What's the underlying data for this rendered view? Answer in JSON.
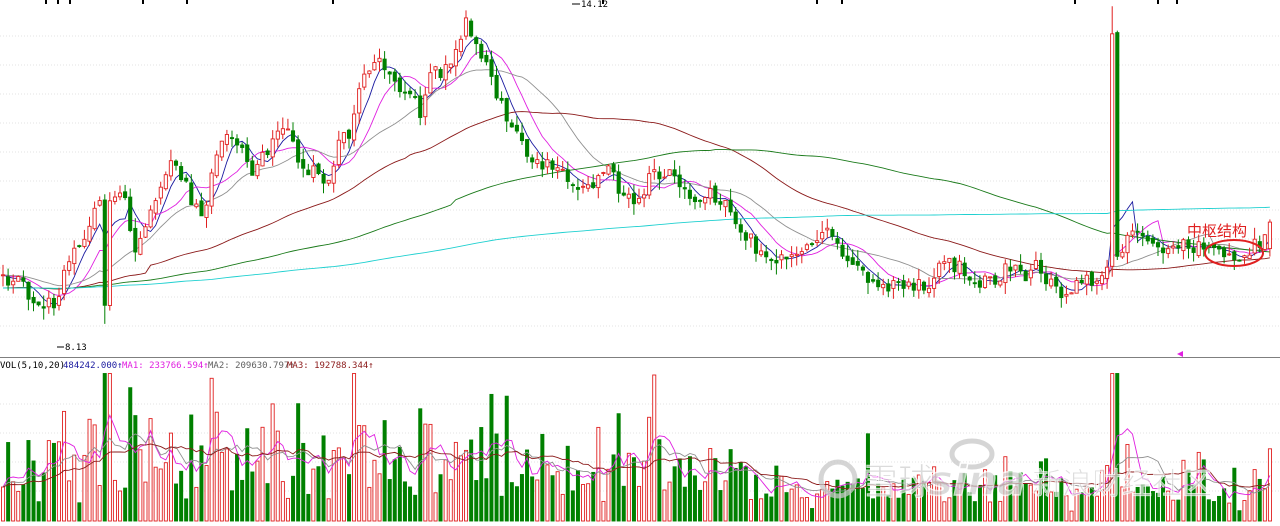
{
  "chart_data": [
    {
      "type": "candlestick",
      "price_high_label": "14.12",
      "price_low_label": "8.13",
      "price_high": 14.12,
      "price_low": 8.13,
      "ylim": [
        7.6,
        14.2
      ],
      "bar_count": 250,
      "grid": true,
      "moving_average_colors": [
        "#1a1aa0",
        "#e020e0",
        "#909090",
        "#8b1a1a",
        "#1a7a1a",
        "#20d0d0"
      ],
      "annotation": {
        "text": "中枢结构",
        "color": "#e02020"
      },
      "up_color": "#e02020",
      "down_color": "#008000",
      "anchors": [
        [
          0,
          9.0
        ],
        [
          8,
          8.95
        ],
        [
          15,
          8.6
        ],
        [
          22,
          8.55
        ],
        [
          27,
          8.45
        ],
        [
          30,
          9.2
        ],
        [
          38,
          9.6
        ],
        [
          45,
          10.3
        ],
        [
          52,
          10.5
        ],
        [
          58,
          10.7
        ],
        [
          62,
          10.3
        ],
        [
          66,
          9.4
        ],
        [
          72,
          10.0
        ],
        [
          78,
          10.8
        ],
        [
          84,
          11.2
        ],
        [
          90,
          10.8
        ],
        [
          96,
          10.3
        ],
        [
          100,
          10.2
        ],
        [
          106,
          11.4
        ],
        [
          112,
          11.8
        ],
        [
          118,
          11.5
        ],
        [
          124,
          11.0
        ],
        [
          130,
          11.3
        ],
        [
          136,
          11.7
        ],
        [
          140,
          11.9
        ],
        [
          145,
          11.4
        ],
        [
          150,
          10.9
        ],
        [
          155,
          11.1
        ],
        [
          160,
          10.7
        ],
        [
          165,
          11.2
        ],
        [
          168,
          11.6
        ],
        [
          172,
          11.7
        ],
        [
          178,
          12.6
        ],
        [
          184,
          13.1
        ],
        [
          190,
          13.0
        ],
        [
          196,
          12.6
        ],
        [
          202,
          12.5
        ],
        [
          208,
          12.1
        ],
        [
          212,
          12.9
        ],
        [
          218,
          12.8
        ],
        [
          222,
          13.0
        ],
        [
          226,
          13.5
        ],
        [
          230,
          13.8
        ],
        [
          234,
          13.6
        ],
        [
          240,
          13.0
        ],
        [
          245,
          12.5
        ],
        [
          250,
          12.1
        ],
        [
          255,
          11.9
        ],
        [
          262,
          11.3
        ],
        [
          270,
          11.1
        ],
        [
          278,
          11.0
        ],
        [
          285,
          10.8
        ],
        [
          290,
          10.6
        ],
        [
          296,
          10.9
        ],
        [
          302,
          11.0
        ],
        [
          308,
          10.6
        ],
        [
          315,
          10.3
        ],
        [
          322,
          10.9
        ],
        [
          330,
          11.0
        ],
        [
          338,
          10.6
        ],
        [
          345,
          10.5
        ],
        [
          352,
          10.6
        ],
        [
          360,
          10.3
        ],
        [
          368,
          9.9
        ],
        [
          376,
          9.5
        ],
        [
          384,
          9.4
        ],
        [
          392,
          9.5
        ],
        [
          400,
          9.7
        ],
        [
          408,
          9.9
        ],
        [
          414,
          9.6
        ],
        [
          420,
          9.3
        ],
        [
          428,
          9.1
        ],
        [
          436,
          8.9
        ],
        [
          444,
          8.8
        ],
        [
          452,
          8.8
        ],
        [
          460,
          8.9
        ],
        [
          468,
          9.3
        ],
        [
          476,
          9.2
        ],
        [
          484,
          8.9
        ],
        [
          490,
          8.9
        ],
        [
          496,
          9.0
        ],
        [
          502,
          9.3
        ],
        [
          508,
          9.0
        ],
        [
          514,
          9.3
        ],
        [
          520,
          8.9
        ],
        [
          528,
          8.7
        ],
        [
          536,
          8.9
        ],
        [
          542,
          9.0
        ],
        [
          550,
          9.1
        ],
        [
          556,
          9.5
        ],
        [
          562,
          9.9
        ],
        [
          568,
          9.6
        ],
        [
          575,
          9.5
        ],
        [
          582,
          9.6
        ],
        [
          590,
          9.6
        ],
        [
          598,
          9.5
        ],
        [
          606,
          9.5
        ],
        [
          612,
          9.4
        ],
        [
          618,
          9.4
        ],
        [
          625,
          9.7
        ],
        [
          630,
          10.1
        ]
      ]
    },
    {
      "type": "bar",
      "legend": [
        {
          "text": "VOL(5,10,20)",
          "color": "#000000"
        },
        {
          "text": "484242.000↑",
          "color": "#1a1aa0"
        },
        {
          "text": "MA1: 233766.594↑",
          "color": "#e020e0"
        },
        {
          "text": "MA2: 209630.797↑",
          "color": "#606060"
        },
        {
          "text": "MA3: 192788.344↑",
          "color": "#8b1a1a"
        }
      ],
      "ma_colors": [
        "#e020e0",
        "#909090",
        "#8b1a1a"
      ],
      "ylim": [
        0,
        1000000
      ]
    }
  ],
  "watermark": {
    "text_left": "雪球",
    "brand": "sina",
    "text_right": "新浪财经社区"
  }
}
